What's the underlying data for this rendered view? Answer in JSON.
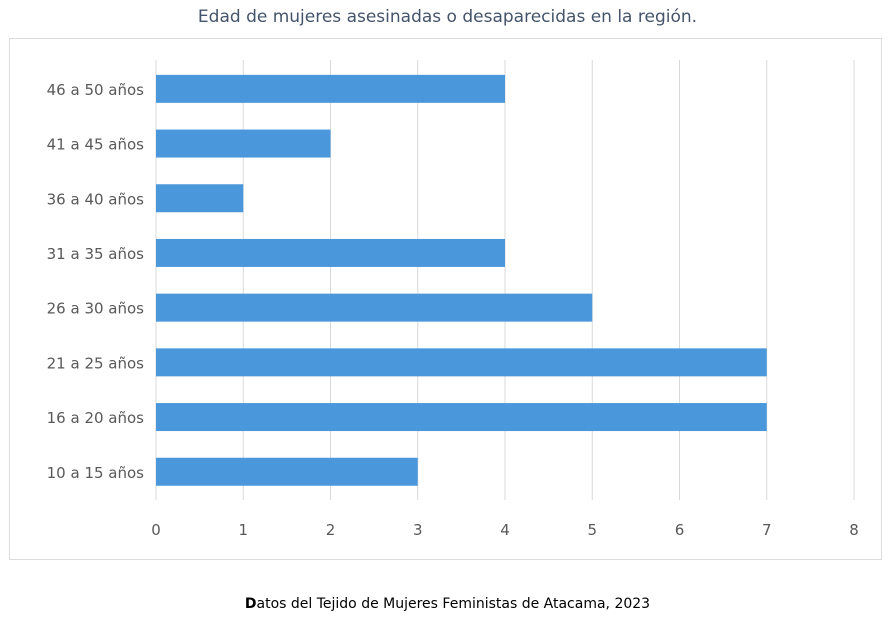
{
  "chart_data": {
    "type": "bar",
    "orientation": "horizontal",
    "title": "Edad de mujeres asesinadas o desaparecidas en la región.",
    "categories": [
      "10 a 15 años",
      "16 a 20 años",
      "21 a 25 años",
      "26 a 30 años",
      "31 a 35 años",
      "36 a 40 años",
      "41 a 45 años",
      "46 a 50 años"
    ],
    "values": [
      3,
      7,
      7,
      5,
      4,
      1,
      2,
      4
    ],
    "xlim": [
      0,
      8
    ],
    "x_ticks": [
      "0",
      "1",
      "2",
      "3",
      "4",
      "5",
      "6",
      "7",
      "8"
    ],
    "grid": "vertical",
    "legend": "none",
    "bar_color": "#4a98db",
    "grid_color": "#d9d9d9",
    "label_color": "#595959",
    "title_color": "#44546a"
  },
  "caption": {
    "first": "D",
    "rest": "atos del Tejido de Mujeres Feministas de Atacama, 2023"
  }
}
